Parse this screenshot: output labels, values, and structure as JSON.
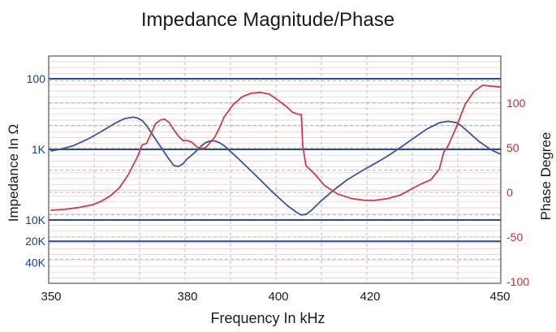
{
  "chart_data": {
    "type": "line",
    "title": "Impedance Magnitude/Phase",
    "xlabel": "Frequency In kHz",
    "ylabel_left": "Impedance In Ω",
    "ylabel_right": "Phase Degree",
    "xlim": [
      350,
      450
    ],
    "x_ticks": [
      350,
      380,
      400,
      420,
      450
    ],
    "x_tick_labels": [
      "350",
      "380",
      "400",
      "420",
      "450"
    ],
    "left_ticks": [
      {
        "value": 100,
        "label": "100"
      },
      {
        "value": 1000,
        "label": "1K"
      },
      {
        "value": 10000,
        "label": "10K"
      },
      {
        "value": 20000,
        "label": "20K"
      },
      {
        "value": 40000,
        "label": "40K"
      }
    ],
    "left_scale": "log, inverted",
    "right_ylim": [
      -100,
      120
    ],
    "right_ticks": [
      100,
      50,
      0,
      -50,
      -100
    ],
    "grid": true,
    "colors": {
      "impedance": "#3a5596",
      "phase": "#cc3b4b",
      "grid_major": "#c9c9c9",
      "grid_minor": "#eec9c9",
      "reference_lines": "#2f4a8c",
      "plot_border": "#555555"
    },
    "series": [
      {
        "name": "Impedance",
        "axis": "left",
        "x": [
          350,
          352,
          355,
          358,
          361,
          364,
          366,
          368,
          369,
          370,
          371,
          372,
          374,
          376,
          377,
          378,
          379,
          380,
          381,
          382,
          383,
          384,
          385,
          386,
          387,
          388,
          390,
          393,
          396,
          399,
          402,
          404,
          405,
          406,
          407,
          409,
          412,
          415,
          418,
          421,
          424,
          427,
          430,
          433,
          436,
          438,
          440,
          441,
          443,
          445,
          448,
          450
        ],
        "y": [
          1050,
          1000,
          880,
          720,
          560,
          430,
          370,
          350,
          360,
          390,
          460,
          580,
          900,
          1400,
          1700,
          1750,
          1600,
          1350,
          1200,
          1050,
          900,
          800,
          760,
          760,
          800,
          880,
          1150,
          1750,
          2700,
          4200,
          6300,
          7800,
          8500,
          8300,
          7500,
          5600,
          3800,
          2700,
          2050,
          1600,
          1250,
          940,
          700,
          520,
          420,
          400,
          420,
          460,
          590,
          760,
          1020,
          1160
        ]
      },
      {
        "name": "Phase",
        "axis": "right",
        "x": [
          350,
          353,
          356,
          359,
          361,
          363,
          365,
          367,
          369,
          370,
          371,
          372,
          373,
          374,
          375,
          376,
          377,
          378,
          379,
          380,
          381,
          382,
          383,
          384,
          385,
          386,
          387,
          388,
          390,
          392,
          394,
          396,
          398,
          400,
          402,
          403,
          404,
          405,
          405.3,
          406,
          408,
          410,
          413,
          416,
          419,
          421,
          424,
          427,
          430,
          432,
          434,
          436,
          437,
          438,
          439,
          440,
          441,
          442,
          444,
          446,
          448,
          450
        ],
        "y": [
          -20,
          -19,
          -17,
          -14,
          -10,
          -4,
          5,
          20,
          40,
          53,
          55,
          66,
          77,
          81,
          82,
          78,
          70,
          63,
          58,
          58,
          56,
          51,
          49,
          50,
          56,
          62,
          72,
          84,
          98,
          107,
          111,
          112,
          110,
          103,
          95,
          90,
          88,
          87,
          53,
          30,
          20,
          8,
          -2,
          -7,
          -9,
          -9,
          -7,
          -3,
          5,
          10,
          14,
          26,
          45,
          52,
          63,
          74,
          87,
          99,
          113,
          120,
          119,
          118
        ]
      }
    ]
  }
}
